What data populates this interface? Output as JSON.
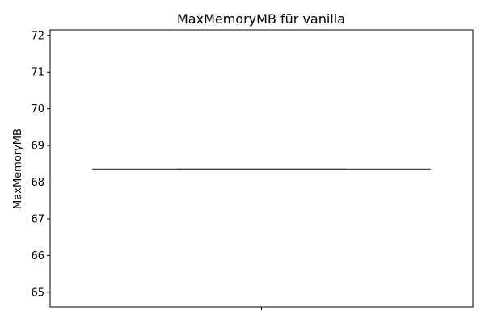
{
  "chart_data": {
    "type": "box",
    "title": "MaxMemoryMB für vanilla",
    "xlabel": "",
    "ylabel": "MaxMemoryMB",
    "ylim": [
      64.6,
      72.15
    ],
    "yticks": [
      65,
      66,
      67,
      68,
      69,
      70,
      71,
      72
    ],
    "grid": false,
    "categories": [
      ""
    ],
    "boxes": [
      {
        "min": 68.35,
        "q1": 68.35,
        "median": 68.35,
        "q3": 68.35,
        "max": 68.35
      }
    ],
    "colors": {
      "box_line": "#3f3f3f",
      "axes": "#000000"
    }
  }
}
